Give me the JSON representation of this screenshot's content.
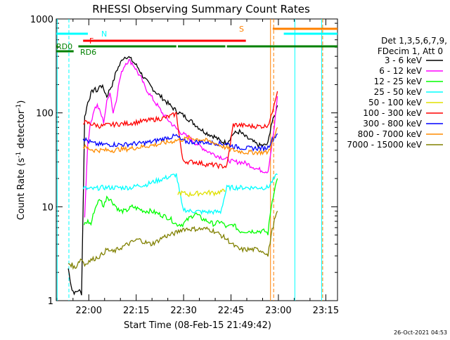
{
  "chart_data": {
    "type": "line",
    "title": "RHESSI Observing Summary Count Rates",
    "xlabel": "Start Time (08-Feb-15 21:49:42)",
    "ylabel_main": "Count Rate (s",
    "ylabel_sup1": "-1",
    "ylabel_mid": " detector",
    "ylabel_sup2": "-1",
    "ylabel_end": ")",
    "y_scale": "log",
    "ylim": [
      1,
      1000
    ],
    "xlim_minutes": [
      0,
      89
    ],
    "x_ticks": [
      {
        "label": "22:00",
        "min": 10.3
      },
      {
        "label": "22:15",
        "min": 25.3
      },
      {
        "label": "22:30",
        "min": 40.3
      },
      {
        "label": "22:45",
        "min": 55.3
      },
      {
        "label": "23:00",
        "min": 70.3
      },
      {
        "label": "23:15",
        "min": 85.3
      }
    ],
    "y_ticks": [
      {
        "label": "1",
        "value": 1
      },
      {
        "label": "10",
        "value": 10
      },
      {
        "label": "100",
        "value": 100
      },
      {
        "label": "1000",
        "value": 1000
      }
    ],
    "legend": {
      "header1": "Det 1,3,5,6,7,9,",
      "header2": "FDecim 1, Att 0",
      "placement": "outside-right",
      "entries": [
        {
          "label": "3 - 6 keV",
          "color": "#000000"
        },
        {
          "label": "6 - 12 keV",
          "color": "#ff00ff"
        },
        {
          "label": "12 - 25 keV",
          "color": "#00ff00"
        },
        {
          "label": "25 - 50 keV",
          "color": "#00ffff"
        },
        {
          "label": "50 - 100 keV",
          "color": "#e0e000"
        },
        {
          "label": "100 - 300 keV",
          "color": "#ff0000"
        },
        {
          "label": "300 - 800 keV",
          "color": "#0000ff"
        },
        {
          "label": "800 - 7000 keV",
          "color": "#ff8c00"
        },
        {
          "label": "7000 - 15000 keV",
          "color": "#808000"
        }
      ]
    },
    "flag_bars": [
      {
        "label": "N",
        "color": "#00ffff",
        "segments": [
          [
            0,
            10
          ],
          [
            72,
            89
          ]
        ]
      },
      {
        "label": "F",
        "color": "#ff0000",
        "segments": [
          [
            8.5,
            60
          ]
        ]
      },
      {
        "label": "S",
        "color": "#ff8000",
        "segments": [
          [
            68.5,
            89
          ]
        ]
      },
      {
        "label": "RD0",
        "color": "#008000",
        "segments": [
          [
            0,
            0.5
          ],
          [
            7,
            38
          ],
          [
            38.5,
            53.5
          ],
          [
            54,
            89
          ]
        ]
      },
      {
        "label": "RD6",
        "color": "#008000",
        "segments": [
          [
            0,
            5.5
          ]
        ]
      }
    ],
    "vlines": [
      {
        "min": 0.3,
        "color": "#00ffff",
        "style": "solid"
      },
      {
        "min": 4.0,
        "color": "#00ffff",
        "style": "dashed"
      },
      {
        "min": 67.8,
        "color": "#ff8000",
        "style": "solid"
      },
      {
        "min": 68.8,
        "color": "#ff8000",
        "style": "dashed"
      },
      {
        "min": 75.5,
        "color": "#00ffff",
        "style": "solid"
      },
      {
        "min": 84.0,
        "color": "#00ffff",
        "style": "solid"
      },
      {
        "min": 84.3,
        "color": "#ff8000",
        "style": "dashed"
      }
    ],
    "series": [
      {
        "name": "3 - 6 keV",
        "color": "#000000",
        "x": [
          3.8,
          5,
          6,
          7,
          8,
          9,
          10,
          11,
          12,
          13,
          14,
          15,
          16,
          17,
          18,
          19,
          20,
          21,
          22,
          23,
          24,
          25,
          26,
          27,
          28,
          30,
          32,
          34,
          36,
          38,
          40,
          42,
          44,
          46,
          48,
          50,
          52,
          54,
          56,
          58,
          60,
          62,
          64,
          66,
          67,
          68,
          69,
          70
        ],
        "y": [
          2.2,
          1.3,
          1.2,
          1.3,
          1.2,
          90,
          130,
          160,
          180,
          170,
          200,
          180,
          150,
          180,
          210,
          280,
          320,
          380,
          400,
          390,
          360,
          330,
          300,
          260,
          230,
          190,
          160,
          140,
          120,
          105,
          95,
          85,
          75,
          66,
          60,
          56,
          50,
          48,
          60,
          63,
          55,
          50,
          45,
          45,
          47,
          75,
          90,
          120
        ]
      },
      {
        "name": "6 - 12 keV",
        "color": "#ff00ff",
        "x": [
          9,
          10,
          11,
          12,
          13,
          14,
          15,
          16,
          17,
          18,
          19,
          20,
          21,
          22,
          23,
          24,
          25,
          26,
          27,
          28,
          30,
          32,
          34,
          36,
          38,
          40,
          42,
          44,
          46,
          48,
          50,
          52,
          54,
          56,
          58,
          60,
          62,
          64,
          66,
          67,
          68,
          69,
          70
        ],
        "y": [
          8,
          50,
          80,
          110,
          120,
          100,
          80,
          130,
          170,
          100,
          140,
          220,
          290,
          340,
          360,
          340,
          300,
          260,
          230,
          190,
          150,
          120,
          95,
          80,
          68,
          60,
          54,
          48,
          43,
          39,
          36,
          34,
          32,
          30,
          30,
          29,
          27,
          25,
          24,
          24,
          40,
          70,
          150
        ]
      },
      {
        "name": "12 - 25 keV",
        "color": "#00ff00",
        "x": [
          8.8,
          10,
          11,
          12,
          13,
          14,
          15,
          16,
          17,
          18,
          19,
          20,
          22,
          24,
          26,
          28,
          30,
          32,
          34,
          36,
          38,
          40,
          42,
          44,
          46,
          48,
          50,
          52,
          54,
          56,
          58,
          60,
          62,
          64,
          66,
          67,
          68,
          69,
          70
        ],
        "y": [
          6.5,
          7,
          6.5,
          9,
          11,
          12,
          10,
          13,
          12,
          11,
          10,
          9,
          9,
          10,
          9.5,
          9,
          9,
          8.5,
          8,
          7.5,
          6.5,
          6.5,
          7.5,
          8.5,
          7.5,
          7.0,
          6.5,
          7,
          6,
          6.5,
          5.5,
          5.5,
          5.5,
          5.5,
          5.5,
          5.2,
          10,
          15,
          20
        ]
      },
      {
        "name": "25 - 50 keV",
        "color": "#00ffff",
        "x": [
          8.5,
          10,
          12,
          14,
          16,
          18,
          20,
          22,
          24,
          26,
          28,
          30,
          32,
          34,
          36,
          38,
          40,
          42,
          44,
          46,
          48,
          50,
          52,
          54,
          56,
          58,
          60,
          62,
          64,
          66,
          67,
          68,
          69,
          70
        ],
        "y": [
          16,
          15.5,
          15.5,
          16,
          16,
          16,
          16,
          16,
          16,
          17,
          17,
          18,
          19,
          20,
          21,
          22,
          9.5,
          9,
          9,
          8.8,
          8.8,
          8.8,
          8.8,
          16,
          16,
          16,
          16,
          16,
          16,
          16,
          16,
          18,
          20,
          22
        ]
      },
      {
        "name": "50 - 100 keV",
        "color": "#e0e000",
        "x": [
          38.5,
          40,
          42,
          44,
          46,
          48,
          50,
          52,
          53.5
        ],
        "y": [
          14,
          14,
          13.5,
          13.8,
          14,
          14.2,
          14,
          14.5,
          14.8
        ]
      },
      {
        "name": "100 - 300 keV",
        "color": "#ff0000",
        "x": [
          8.5,
          10,
          12,
          14,
          16,
          18,
          20,
          22,
          24,
          26,
          28,
          30,
          32,
          34,
          36,
          38,
          40,
          42,
          44,
          46,
          48,
          50,
          52,
          54,
          56,
          58,
          60,
          62,
          64,
          66,
          67,
          68,
          69,
          70
        ],
        "y": [
          80,
          78,
          75,
          72,
          74,
          75,
          76,
          77,
          78,
          80,
          82,
          84,
          86,
          88,
          92,
          98,
          31,
          30,
          30,
          29,
          28,
          28,
          27,
          27,
          75,
          74,
          73,
          72,
          72,
          72,
          75,
          90,
          130,
          170
        ]
      },
      {
        "name": "300 - 800 keV",
        "color": "#0000ff",
        "x": [
          8.5,
          10,
          12,
          14,
          16,
          18,
          20,
          22,
          24,
          26,
          28,
          30,
          32,
          34,
          36,
          38,
          40,
          42,
          44,
          46,
          48,
          50,
          52,
          54,
          56,
          58,
          60,
          62,
          64,
          66,
          67,
          68,
          69,
          70
        ],
        "y": [
          54,
          50,
          47,
          46,
          46,
          46,
          46,
          46,
          47,
          47,
          48,
          49,
          51,
          53,
          55,
          57,
          50,
          49,
          49,
          49,
          48,
          48,
          47,
          47,
          44,
          43,
          42,
          42,
          42,
          42,
          43,
          50,
          55,
          60
        ]
      },
      {
        "name": "800 - 7000 keV",
        "color": "#ff8c00",
        "x": [
          8.5,
          10,
          12,
          14,
          16,
          18,
          20,
          22,
          24,
          26,
          28,
          30,
          32,
          34,
          36,
          38,
          40,
          42,
          44,
          46,
          48,
          50,
          52,
          54,
          56,
          58,
          60,
          62,
          64,
          66,
          67,
          68,
          69,
          70
        ],
        "y": [
          44,
          42,
          40,
          40,
          40,
          40,
          41,
          41,
          42,
          43,
          44,
          45,
          46,
          48,
          49,
          51,
          52,
          54,
          53,
          52,
          50,
          48,
          45,
          42,
          40,
          39,
          38,
          38,
          38,
          38,
          38,
          45,
          55,
          70
        ]
      },
      {
        "name": "7000 - 15000 keV",
        "color": "#808000",
        "x": [
          3.8,
          5,
          6,
          7,
          8,
          9,
          10,
          12,
          14,
          16,
          18,
          20,
          22,
          24,
          26,
          28,
          30,
          32,
          34,
          36,
          38,
          40,
          42,
          44,
          46,
          48,
          50,
          52,
          54,
          56,
          58,
          60,
          62,
          64,
          66,
          67,
          68,
          69,
          70
        ],
        "y": [
          2.5,
          2.4,
          2.2,
          2.6,
          2.8,
          2.4,
          2.6,
          2.8,
          3.0,
          3.5,
          3.3,
          3.6,
          3.9,
          4.2,
          4.5,
          4.2,
          4.0,
          4.3,
          4.8,
          5.0,
          5.3,
          5.8,
          5.8,
          5.8,
          5.8,
          5.8,
          5.5,
          5.0,
          4.5,
          3.9,
          3.5,
          3.5,
          3.5,
          3.5,
          3.3,
          3.0,
          5,
          7,
          9
        ]
      }
    ]
  },
  "timestamp": "26-Oct-2021 04:53"
}
